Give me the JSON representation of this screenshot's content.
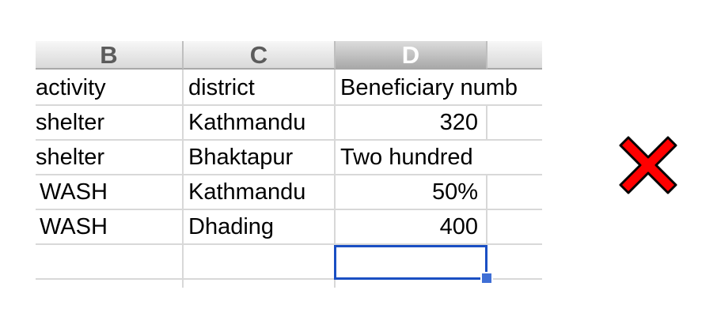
{
  "sheet": {
    "columns": [
      "B",
      "C",
      "D"
    ],
    "selected_column": "D",
    "rows": [
      {
        "activity": "activity",
        "district": "district",
        "beneficiary": "Beneficiary numb"
      },
      {
        "activity": "shelter",
        "district": "Kathmandu",
        "beneficiary": "320"
      },
      {
        "activity": "shelter",
        "district": "Bhaktapur",
        "beneficiary": "Two hundred"
      },
      {
        "activity": "WASH",
        "district": "Kathmandu",
        "beneficiary": "50%"
      },
      {
        "activity": "WASH",
        "district": "Dhading",
        "beneficiary": "400"
      },
      {
        "activity": "",
        "district": "",
        "beneficiary": ""
      }
    ],
    "selected_cell": "D7"
  },
  "icons": {
    "status": "red-x-icon"
  },
  "colors": {
    "selection": "#1a4fc3",
    "x_mark": "#ff0000"
  }
}
